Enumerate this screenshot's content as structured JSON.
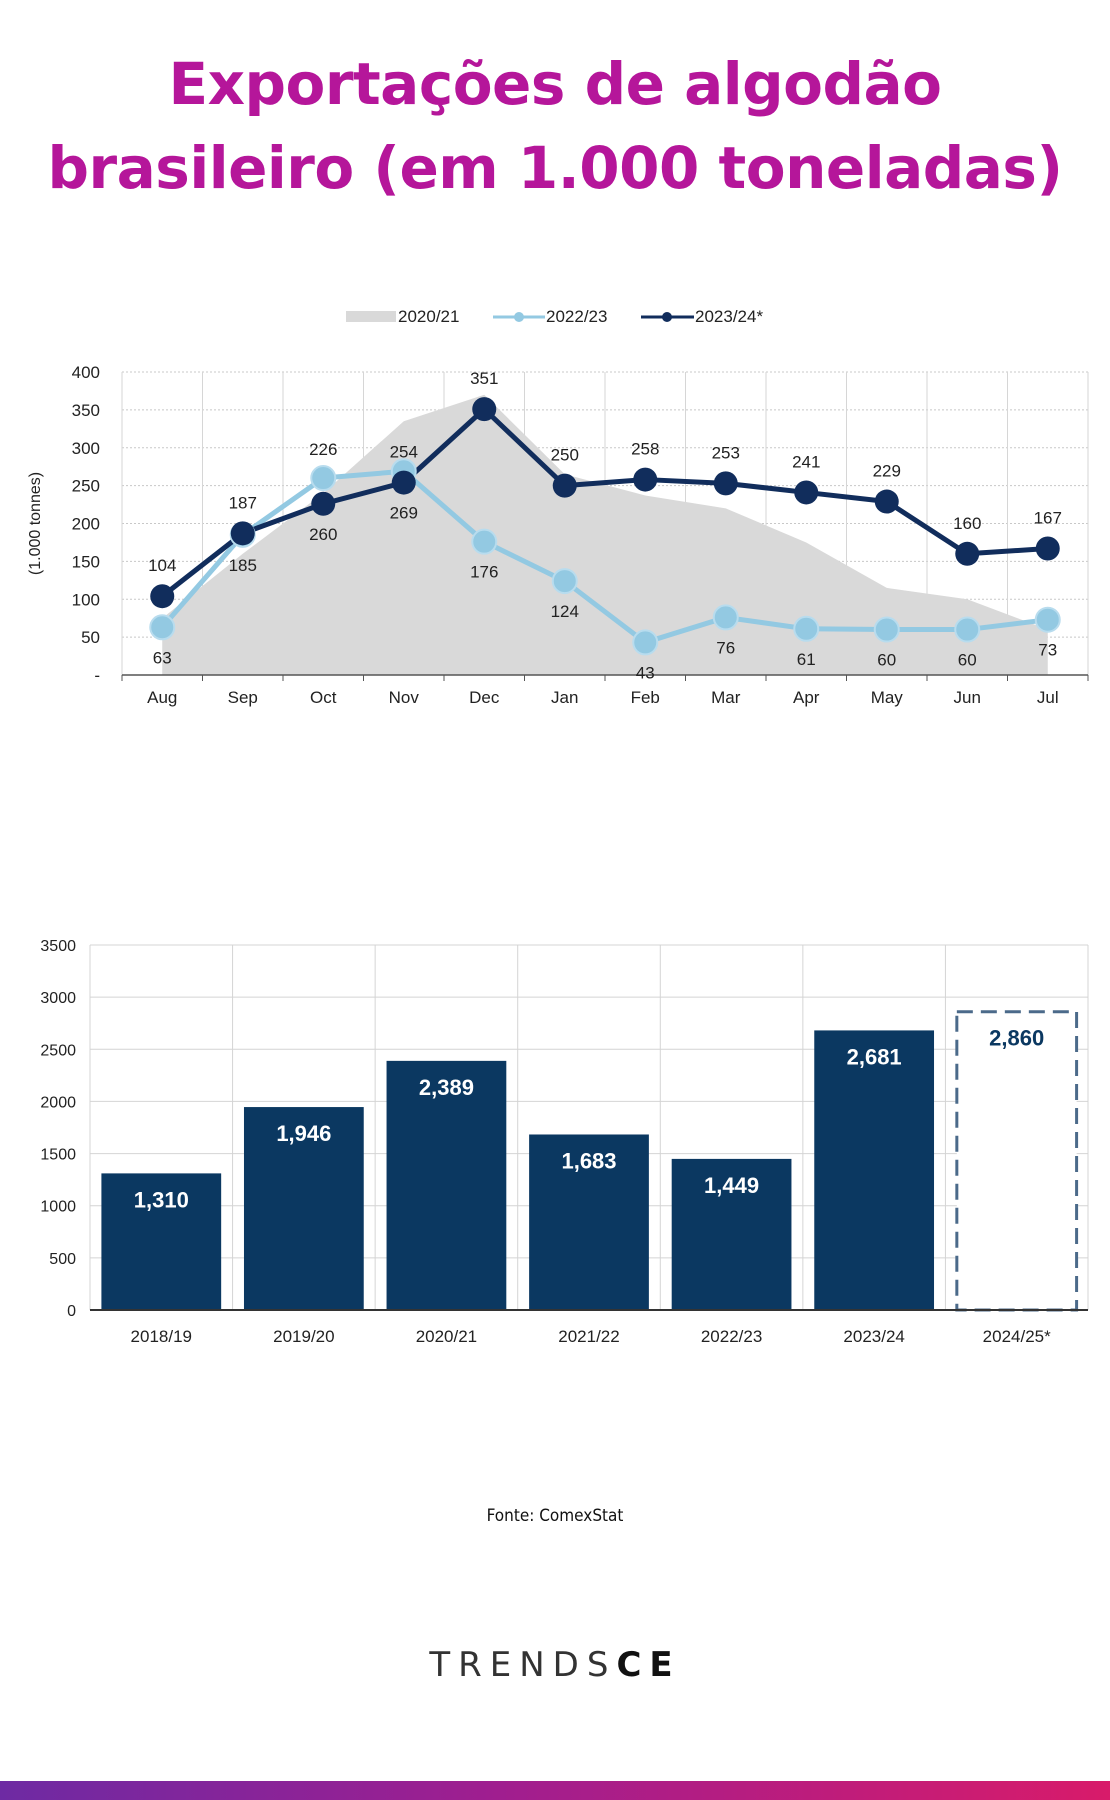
{
  "title": {
    "line1": "Exportações de algodão",
    "line2": "brasileiro (em 1.000 toneladas)"
  },
  "source": "Fonte: ComexStat",
  "logo": {
    "light": "TRENDS",
    "bold": "CE"
  },
  "colors": {
    "title": "#b5169a",
    "navy": "#112d5c",
    "light_blue": "#93c9e2",
    "area": "#d9d9d9",
    "bar": "#0b3861"
  },
  "chart_data": [
    {
      "type": "line",
      "ylabel": "(1.000 tonnes)",
      "ylim": [
        0,
        400
      ],
      "yticks": [
        "-",
        "50",
        "100",
        "150",
        "200",
        "250",
        "300",
        "350",
        "400"
      ],
      "categories": [
        "Aug",
        "Sep",
        "Oct",
        "Nov",
        "Dec",
        "Jan",
        "Feb",
        "Mar",
        "Apr",
        "May",
        "Jun",
        "Jul"
      ],
      "legend_position": "top",
      "grid": true,
      "series": [
        {
          "name": "2020/21",
          "kind": "area",
          "color": "#d9d9d9",
          "values": [
            75,
            160,
            240,
            335,
            370,
            265,
            237,
            220,
            175,
            115,
            100,
            60
          ]
        },
        {
          "name": "2022/23",
          "kind": "line",
          "color": "#93c9e2",
          "values": [
            63,
            185,
            260,
            269,
            176,
            124,
            43,
            76,
            61,
            60,
            60,
            73
          ],
          "labels": [
            "63",
            "185",
            "260",
            "269",
            "176",
            "124",
            "43",
            "76",
            "61",
            "60",
            "60",
            "73"
          ]
        },
        {
          "name": "2023/24*",
          "kind": "line",
          "color": "#112d5c",
          "values": [
            104,
            187,
            226,
            254,
            351,
            250,
            258,
            253,
            241,
            229,
            160,
            167
          ],
          "labels": [
            "104",
            "187",
            "226",
            "254",
            "351",
            "250",
            "258",
            "253",
            "241",
            "229",
            "160",
            "167"
          ]
        }
      ]
    },
    {
      "type": "bar",
      "ylim": [
        0,
        3500
      ],
      "yticks": [
        "0",
        "500",
        "1000",
        "1500",
        "2000",
        "2500",
        "3000",
        "3500"
      ],
      "categories": [
        "2018/19",
        "2019/20",
        "2020/21",
        "2021/22",
        "2022/23",
        "2023/24",
        "2024/25*"
      ],
      "values": [
        1310,
        1946,
        2389,
        1683,
        1449,
        2681,
        2860
      ],
      "labels": [
        "1,310",
        "1,946",
        "2,389",
        "1,683",
        "1,449",
        "2,681",
        "2,860"
      ],
      "projected": [
        false,
        false,
        false,
        false,
        false,
        false,
        true
      ],
      "grid": true
    }
  ]
}
